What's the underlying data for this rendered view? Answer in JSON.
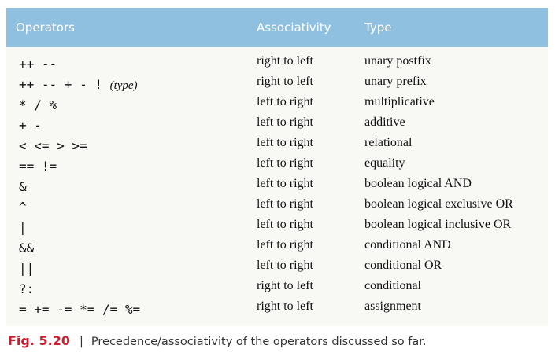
{
  "table": {
    "headers": {
      "operators": "Operators",
      "associativity": "Associativity",
      "type": "Type"
    },
    "rows": [
      {
        "ops": "++  --",
        "assoc": "right to left",
        "type": "unary postfix"
      },
      {
        "ops": "++  --  +   -   !   ",
        "ops_italic": "(type)",
        "assoc": "right to left",
        "type": "unary prefix"
      },
      {
        "ops": "*   /   %",
        "assoc": "left to right",
        "type": "multiplicative"
      },
      {
        "ops": "+   -",
        "assoc": "left to right",
        "type": "additive"
      },
      {
        "ops": "<   <=  >   >=",
        "assoc": "left to right",
        "type": "relational"
      },
      {
        "ops": "==  !=",
        "assoc": "left to right",
        "type": "equality"
      },
      {
        "ops": "&",
        "assoc": "left to right",
        "type": "boolean logical AND"
      },
      {
        "ops": "^",
        "assoc": "left to right",
        "type": "boolean logical exclusive OR"
      },
      {
        "ops": "|",
        "assoc": "left to right",
        "type": "boolean logical inclusive OR"
      },
      {
        "ops": "&&",
        "assoc": "left to right",
        "type": "conditional AND"
      },
      {
        "ops": "||",
        "assoc": "left to right",
        "type": "conditional OR"
      },
      {
        "ops": "?:",
        "assoc": "right to left",
        "type": "conditional"
      },
      {
        "ops": "=   +=  -=  *=  /=  %=",
        "assoc": "right to left",
        "type": "assignment"
      }
    ]
  },
  "caption": {
    "figure": "Fig. 5.20",
    "separator": "|",
    "text": "Precedence/associativity of the operators discussed so far."
  },
  "colors": {
    "header_bg": "#8fc0e0",
    "figure_label": "#c8202f"
  }
}
